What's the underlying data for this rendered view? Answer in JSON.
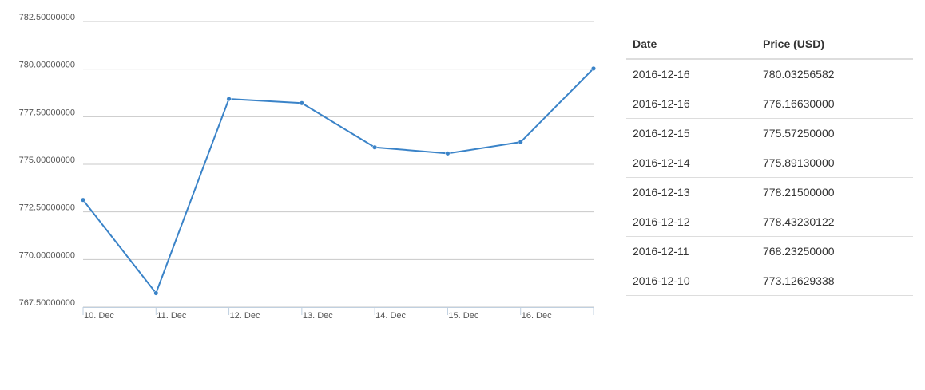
{
  "chart_data": {
    "type": "line",
    "categories": [
      "10. Dec",
      "11. Dec",
      "12. Dec",
      "13. Dec",
      "14. Dec",
      "15. Dec",
      "16. Dec",
      null
    ],
    "series": [
      {
        "color": "#3a83c8",
        "values": [
          773.12629338,
          768.2325,
          778.43230122,
          778.215,
          775.8913,
          775.5725,
          776.1663,
          780.03256582
        ]
      }
    ],
    "ylim": [
      767.5,
      782.5
    ],
    "yticks": [
      {
        "value": 767.5,
        "label": "767.50000000"
      },
      {
        "value": 770,
        "label": "770.00000000"
      },
      {
        "value": 772.5,
        "label": "772.50000000"
      },
      {
        "value": 775,
        "label": "775.00000000"
      },
      {
        "value": 777.5,
        "label": "777.50000000"
      },
      {
        "value": 780,
        "label": "780.00000000"
      },
      {
        "value": 782.5,
        "label": "782.50000000"
      }
    ],
    "grid": true
  },
  "table": {
    "columns": [
      "Date",
      "Price (USD)"
    ],
    "rows": [
      [
        "2016-12-16",
        "780.03256582"
      ],
      [
        "2016-12-16",
        "776.16630000"
      ],
      [
        "2016-12-15",
        "775.57250000"
      ],
      [
        "2016-12-14",
        "775.89130000"
      ],
      [
        "2016-12-13",
        "778.21500000"
      ],
      [
        "2016-12-12",
        "778.43230122"
      ],
      [
        "2016-12-11",
        "768.23250000"
      ],
      [
        "2016-12-10",
        "773.12629338"
      ]
    ]
  }
}
